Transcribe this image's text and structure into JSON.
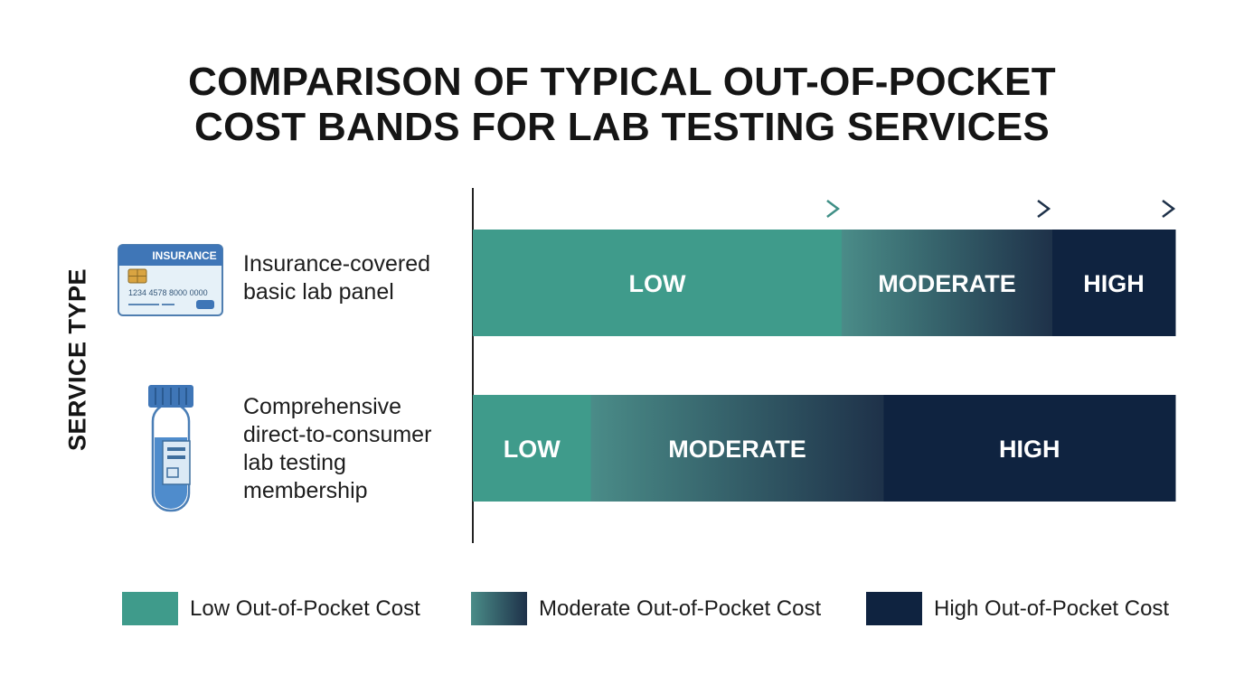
{
  "title_lines": [
    "COMPARISON OF TYPICAL OUT-OF-POCKET",
    "COST BANDS FOR LAB TESTING SERVICES"
  ],
  "colors": {
    "low": "#3f9b8b",
    "moderate_start": "#4a8c88",
    "moderate_end": "#1e3149",
    "high": "#0f2340",
    "axis": "#222222",
    "arrow_start": "#3f8f86",
    "arrow_end": "#1e3149"
  },
  "icons": [
    "insurance-card-icon",
    "test-tube-icon"
  ],
  "card_text": {
    "label": "INSURANCE",
    "number": "1234 4578 8000 0000"
  },
  "chart_data": {
    "type": "bar",
    "orientation": "horizontal",
    "stacked": true,
    "ylabel": "SERVICE TYPE",
    "xlabel": "",
    "xlim": [
      0,
      1
    ],
    "categories": [
      [
        "Insurance-covered",
        "basic lab panel"
      ],
      [
        "Comprehensive",
        "direct-to-consumer",
        "lab testing",
        "membership"
      ]
    ],
    "series": [
      {
        "name": "Low Out-of-Pocket Cost",
        "band_label": "LOW",
        "values": [
          0.525,
          0.168
        ]
      },
      {
        "name": "Moderate Out-of-Pocket Cost",
        "band_label": "MODERATE",
        "values": [
          0.3,
          0.417
        ]
      },
      {
        "name": "High Out-of-Pocket Cost",
        "band_label": "HIGH",
        "values": [
          0.175,
          0.415
        ]
      }
    ],
    "legend_position": "bottom"
  }
}
